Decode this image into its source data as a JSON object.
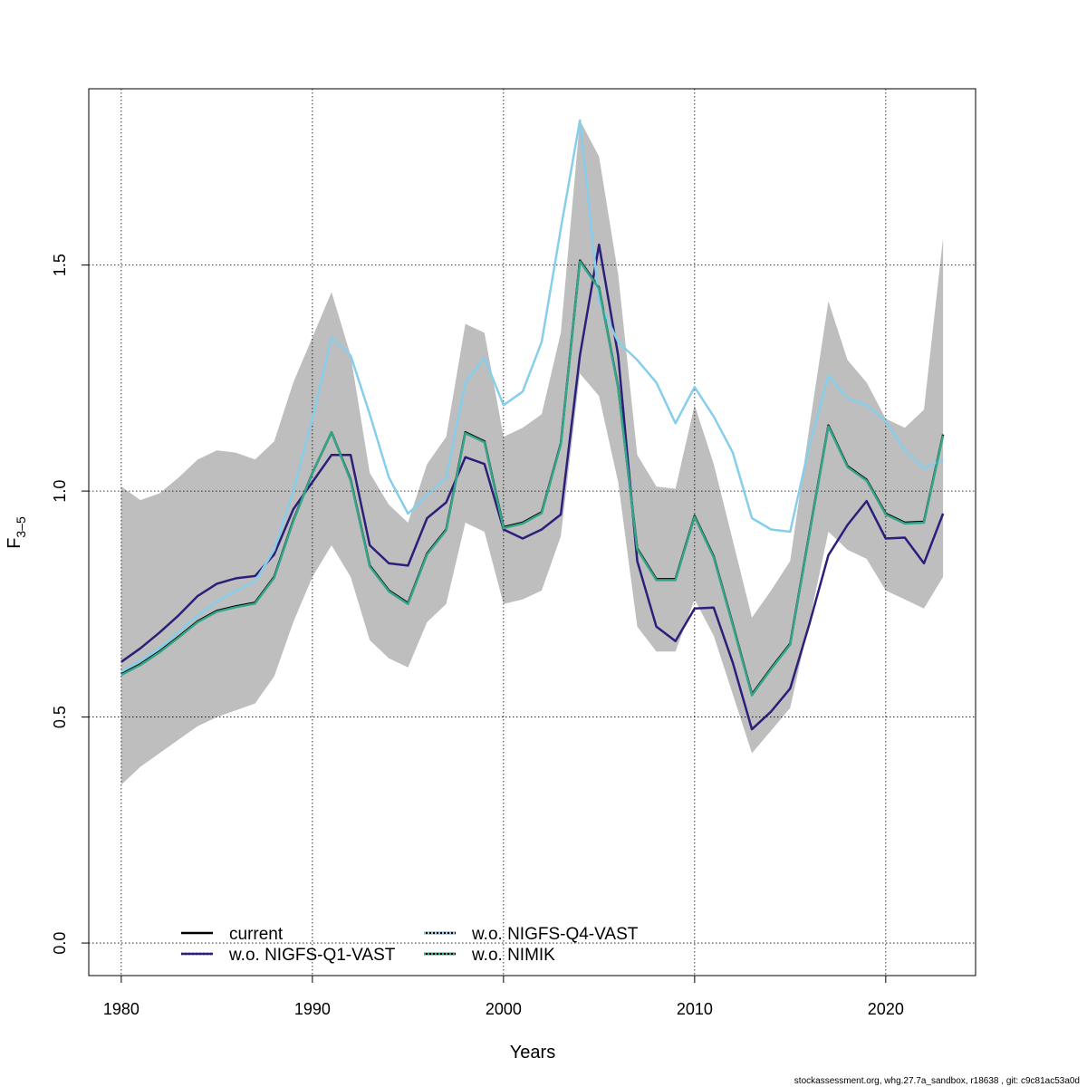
{
  "chart_data": {
    "type": "line",
    "xlabel": "Years",
    "ylabel": "F",
    "ylabel_sub": "3–5",
    "xlim": [
      1978.3,
      2024.7
    ],
    "ylim": [
      -0.072,
      1.89
    ],
    "x_ticks": [
      1980,
      1990,
      2000,
      2010,
      2020
    ],
    "y_ticks": [
      0.0,
      0.5,
      1.0,
      1.5
    ],
    "y_tick_labels": [
      "0.0",
      "0.5",
      "1.0",
      "1.5"
    ],
    "grid": true,
    "legend_position": "bottom-left",
    "band": {
      "color": "#bebebe",
      "x": [
        1980,
        1981,
        1982,
        1983,
        1984,
        1985,
        1986,
        1987,
        1988,
        1989,
        1990,
        1991,
        1992,
        1993,
        1994,
        1995,
        1996,
        1997,
        1998,
        1999,
        2000,
        2001,
        2002,
        2003,
        2004,
        2005,
        2006,
        2007,
        2008,
        2009,
        2010,
        2011,
        2012,
        2013,
        2014,
        2015,
        2016,
        2017,
        2018,
        2019,
        2020,
        2021,
        2022,
        2023
      ],
      "lower": [
        0.35,
        0.39,
        0.42,
        0.45,
        0.48,
        0.5,
        0.515,
        0.53,
        0.59,
        0.71,
        0.81,
        0.88,
        0.81,
        0.67,
        0.63,
        0.61,
        0.71,
        0.75,
        0.93,
        0.91,
        0.75,
        0.76,
        0.78,
        0.9,
        1.26,
        1.21,
        1.02,
        0.7,
        0.645,
        0.645,
        0.76,
        0.68,
        0.55,
        0.42,
        0.47,
        0.52,
        0.71,
        0.91,
        0.87,
        0.85,
        0.78,
        0.76,
        0.74,
        0.81
      ],
      "upper": [
        1.01,
        0.98,
        0.995,
        1.03,
        1.07,
        1.09,
        1.085,
        1.07,
        1.11,
        1.24,
        1.34,
        1.44,
        1.3,
        1.04,
        0.97,
        0.93,
        1.06,
        1.12,
        1.37,
        1.35,
        1.12,
        1.14,
        1.17,
        1.35,
        1.82,
        1.74,
        1.48,
        1.08,
        1.01,
        1.005,
        1.19,
        1.06,
        0.89,
        0.72,
        0.78,
        0.845,
        1.14,
        1.42,
        1.29,
        1.24,
        1.16,
        1.14,
        1.18,
        1.56
      ]
    },
    "x": [
      1980,
      1981,
      1982,
      1983,
      1984,
      1985,
      1986,
      1987,
      1988,
      1989,
      1990,
      1991,
      1992,
      1993,
      1994,
      1995,
      1996,
      1997,
      1998,
      1999,
      2000,
      2001,
      2002,
      2003,
      2004,
      2005,
      2006,
      2007,
      2008,
      2009,
      2010,
      2011,
      2012,
      2013,
      2014,
      2015,
      2016,
      2017,
      2018,
      2019,
      2020,
      2021,
      2022,
      2023
    ],
    "series": [
      {
        "name": "current",
        "color": "#000000",
        "dash": "",
        "values": [
          0.595,
          0.617,
          0.645,
          0.678,
          0.712,
          0.735,
          0.745,
          0.753,
          0.81,
          0.935,
          1.04,
          1.13,
          1.025,
          0.835,
          0.78,
          0.752,
          0.862,
          0.915,
          1.13,
          1.11,
          0.92,
          0.93,
          0.953,
          1.105,
          1.51,
          1.45,
          1.23,
          0.873,
          0.805,
          0.805,
          0.945,
          0.855,
          0.705,
          0.55,
          0.608,
          0.662,
          0.905,
          1.145,
          1.055,
          1.025,
          0.95,
          0.93,
          0.932,
          1.125
        ]
      },
      {
        "name": "w.o. NIGFS-Q1-VAST",
        "color": "#2c1f7a",
        "dash": "",
        "values": [
          0.622,
          0.652,
          0.687,
          0.725,
          0.768,
          0.795,
          0.807,
          0.812,
          0.86,
          0.96,
          1.02,
          1.08,
          1.08,
          0.88,
          0.84,
          0.835,
          0.94,
          0.975,
          1.075,
          1.06,
          0.915,
          0.895,
          0.915,
          0.948,
          1.3,
          1.545,
          1.3,
          0.845,
          0.7,
          0.668,
          0.74,
          0.742,
          0.62,
          0.473,
          0.512,
          0.563,
          0.705,
          0.858,
          0.925,
          0.978,
          0.895,
          0.897,
          0.84,
          0.95
        ]
      },
      {
        "name": "w.o. NIGFS-Q4-VAST",
        "color": "#87ceeb",
        "dash": "",
        "values": [
          0.6,
          0.625,
          0.652,
          0.688,
          0.725,
          0.755,
          0.78,
          0.8,
          0.87,
          1.0,
          1.16,
          1.34,
          1.3,
          1.17,
          1.03,
          0.95,
          0.99,
          1.03,
          1.24,
          1.295,
          1.19,
          1.22,
          1.33,
          1.58,
          1.82,
          1.42,
          1.33,
          1.29,
          1.24,
          1.15,
          1.23,
          1.165,
          1.085,
          0.94,
          0.915,
          0.91,
          1.1,
          1.255,
          1.205,
          1.19,
          1.155,
          1.09,
          1.05,
          1.07
        ]
      },
      {
        "name": "w.o. NIMIK",
        "color": "#35a58a",
        "dash": "",
        "values": [
          0.593,
          0.615,
          0.643,
          0.676,
          0.71,
          0.733,
          0.743,
          0.751,
          0.808,
          0.933,
          1.04,
          1.13,
          1.023,
          0.833,
          0.778,
          0.75,
          0.86,
          0.913,
          1.128,
          1.108,
          0.918,
          0.928,
          0.951,
          1.103,
          1.508,
          1.448,
          1.228,
          0.871,
          0.803,
          0.803,
          0.943,
          0.853,
          0.703,
          0.548,
          0.606,
          0.66,
          0.903,
          1.143,
          1.053,
          1.023,
          0.948,
          0.928,
          0.93,
          1.123
        ]
      }
    ],
    "legend": [
      {
        "label": "current",
        "line_color": "#000000",
        "dot_color": ""
      },
      {
        "label": "w.o. NIGFS-Q1-VAST",
        "line_color": "#2c1f7a",
        "dot_color": "#2c1f7a"
      },
      {
        "label": "w.o. NIGFS-Q4-VAST",
        "line_color": "#000000",
        "dot_color": "#87ceeb"
      },
      {
        "label": "w.o. NIMIK",
        "line_color": "#000000",
        "dot_color": "#35a58a"
      }
    ]
  },
  "footer": "stockassessment.org, whg.27.7a_sandbox, r18638 , git: c9c81ac53a0d"
}
